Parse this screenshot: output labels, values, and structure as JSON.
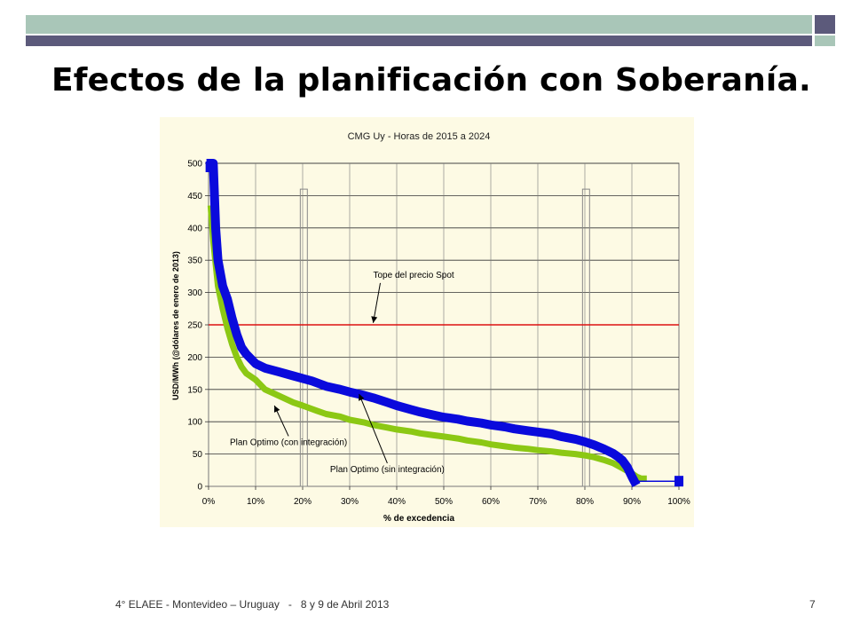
{
  "slide": {
    "title": "Efectos de la planificación con Soberanía.",
    "footer": "4° ELAEE - Montevideo – Uruguay   -   8 y 9 de Abril 2013",
    "page_number": "7"
  },
  "colors": {
    "header_light": "#a9c6b8",
    "header_dark": "#5c5a7b",
    "chart_background": "#fdfae4",
    "blue_series": "#0a0adc",
    "green_series": "#8cc814",
    "cap_line": "#dd1111"
  },
  "chart_data": {
    "type": "line",
    "title": "CMG Uy - Horas de 2015 a 2024",
    "xlabel": "% de excedencia",
    "ylabel": "USD/MWh (@dólares de enero de 2013)",
    "xlim": [
      0,
      100
    ],
    "ylim": [
      0,
      500
    ],
    "x_ticks": [
      "0%",
      "10%",
      "20%",
      "30%",
      "40%",
      "50%",
      "60%",
      "70%",
      "80%",
      "90%",
      "100%"
    ],
    "y_ticks": [
      "0",
      "50",
      "100",
      "150",
      "200",
      "250",
      "300",
      "350",
      "400",
      "450",
      "500"
    ],
    "grid": true,
    "series": [
      {
        "name": "Plan Optimo (sin integración)",
        "color": "#0a0adc",
        "points": [
          [
            0.5,
            500
          ],
          [
            1,
            500
          ],
          [
            1.5,
            400
          ],
          [
            2,
            350
          ],
          [
            3,
            310
          ],
          [
            4,
            290
          ],
          [
            5,
            260
          ],
          [
            6,
            235
          ],
          [
            7,
            215
          ],
          [
            8,
            205
          ],
          [
            10,
            190
          ],
          [
            12,
            183
          ],
          [
            15,
            177
          ],
          [
            18,
            171
          ],
          [
            20,
            167
          ],
          [
            22,
            163
          ],
          [
            25,
            155
          ],
          [
            28,
            150
          ],
          [
            30,
            146
          ],
          [
            33,
            141
          ],
          [
            35,
            137
          ],
          [
            38,
            130
          ],
          [
            40,
            125
          ],
          [
            43,
            119
          ],
          [
            45,
            115
          ],
          [
            48,
            110
          ],
          [
            50,
            107
          ],
          [
            53,
            104
          ],
          [
            55,
            101
          ],
          [
            58,
            98
          ],
          [
            60,
            95
          ],
          [
            63,
            92
          ],
          [
            65,
            89
          ],
          [
            68,
            86
          ],
          [
            70,
            84
          ],
          [
            73,
            81
          ],
          [
            75,
            77
          ],
          [
            78,
            73
          ],
          [
            80,
            69
          ],
          [
            82,
            64
          ],
          [
            84,
            58
          ],
          [
            86,
            51
          ],
          [
            87,
            46
          ],
          [
            88,
            40
          ],
          [
            89,
            30
          ],
          [
            90,
            15
          ],
          [
            90.5,
            8
          ],
          [
            100,
            8
          ],
          [
            100,
            5
          ]
        ]
      },
      {
        "name": "Plan Optimo (con integración)",
        "color": "#8cc814",
        "points": [
          [
            0.5,
            430
          ],
          [
            1,
            380
          ],
          [
            2,
            310
          ],
          [
            3,
            275
          ],
          [
            4,
            245
          ],
          [
            5,
            220
          ],
          [
            6,
            200
          ],
          [
            7,
            185
          ],
          [
            8,
            175
          ],
          [
            10,
            165
          ],
          [
            12,
            150
          ],
          [
            15,
            140
          ],
          [
            18,
            130
          ],
          [
            20,
            125
          ],
          [
            23,
            117
          ],
          [
            25,
            112
          ],
          [
            28,
            108
          ],
          [
            30,
            103
          ],
          [
            33,
            99
          ],
          [
            35,
            95
          ],
          [
            38,
            91
          ],
          [
            40,
            88
          ],
          [
            43,
            85
          ],
          [
            45,
            82
          ],
          [
            48,
            79
          ],
          [
            50,
            77
          ],
          [
            53,
            74
          ],
          [
            55,
            71
          ],
          [
            58,
            68
          ],
          [
            60,
            65
          ],
          [
            63,
            62
          ],
          [
            65,
            60
          ],
          [
            68,
            58
          ],
          [
            70,
            56
          ],
          [
            73,
            54
          ],
          [
            75,
            52
          ],
          [
            78,
            50
          ],
          [
            80,
            48
          ],
          [
            82,
            45
          ],
          [
            84,
            41
          ],
          [
            86,
            36
          ],
          [
            87,
            32
          ],
          [
            88,
            28
          ],
          [
            89,
            24
          ],
          [
            90,
            20
          ],
          [
            91,
            15
          ],
          [
            92,
            12
          ],
          [
            92.5,
            12
          ]
        ]
      }
    ],
    "reference_line": {
      "value": 250,
      "color": "#dd1111"
    },
    "highlight_bands": [
      {
        "from": 19.5,
        "to": 21,
        "top": 460
      },
      {
        "from": 79.5,
        "to": 81,
        "top": 460
      }
    ],
    "annotations": [
      {
        "text": "Tope del precio Spot",
        "x": 35,
        "y": 323,
        "arrow_to": [
          35,
          253
        ],
        "align": "start"
      },
      {
        "text": "Plan Optimo (con integración)",
        "x": 17,
        "y": 64,
        "arrow_to": [
          14,
          125
        ],
        "align": "middle"
      },
      {
        "text": "Plan Optimo (sin integración)",
        "x": 38,
        "y": 22,
        "arrow_to": [
          32,
          143
        ],
        "align": "middle"
      }
    ]
  }
}
